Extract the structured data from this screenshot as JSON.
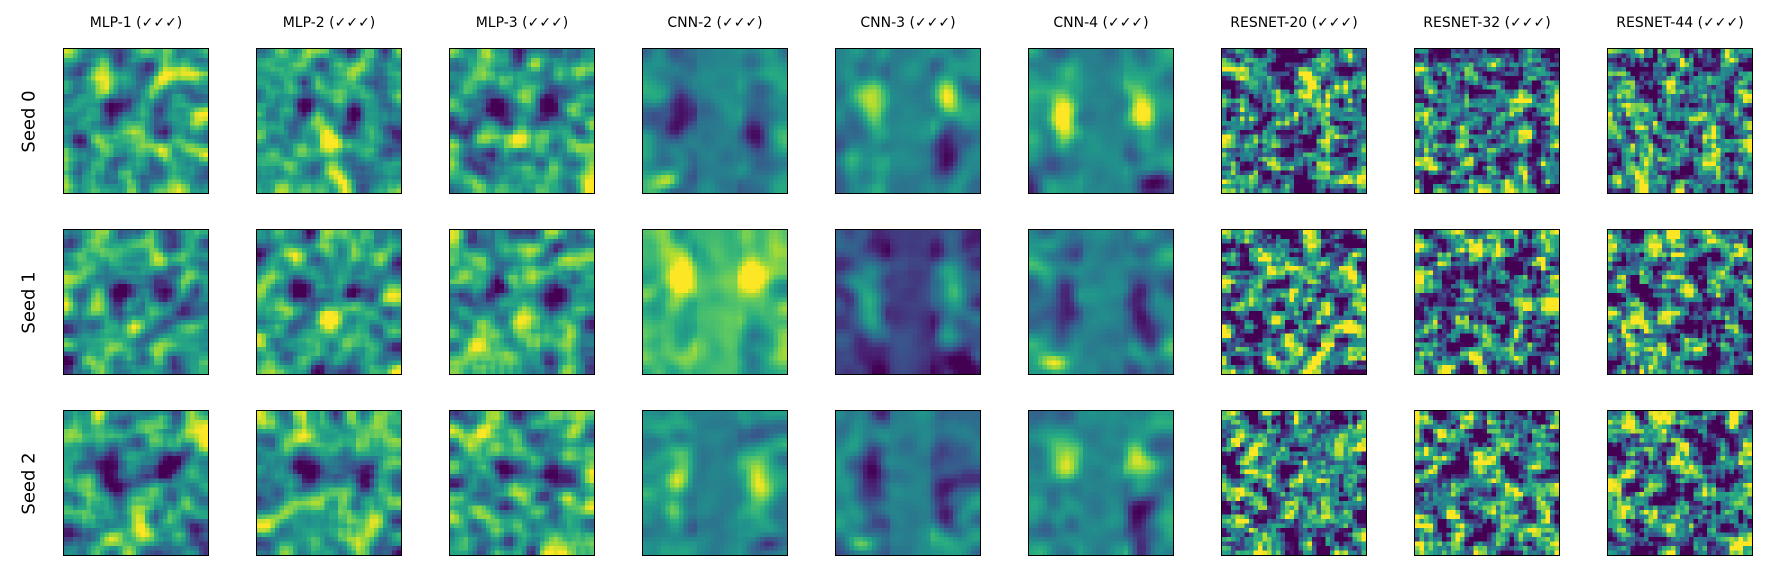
{
  "chart_data": {
    "type": "heatmap",
    "colormap": "viridis",
    "grid": false,
    "columns": [
      "MLP-1 (✓✓✓)",
      "MLP-2 (✓✓✓)",
      "MLP-3 (✓✓✓)",
      "CNN-2 (✓✓✓)",
      "CNN-3 (✓✓✓)",
      "CNN-4 (✓✓✓)",
      "RESNET-20 (✓✓✓)",
      "RESNET-32 (✓✓✓)",
      "RESNET-44 (✓✓✓)"
    ],
    "rows": [
      "Seed 0",
      "Seed 1",
      "Seed 2"
    ],
    "ticks": "none"
  },
  "colors": {
    "viridis_low": "#440154",
    "viridis_mid": "#21918c",
    "viridis_high": "#fde725",
    "frame": "#000000"
  }
}
